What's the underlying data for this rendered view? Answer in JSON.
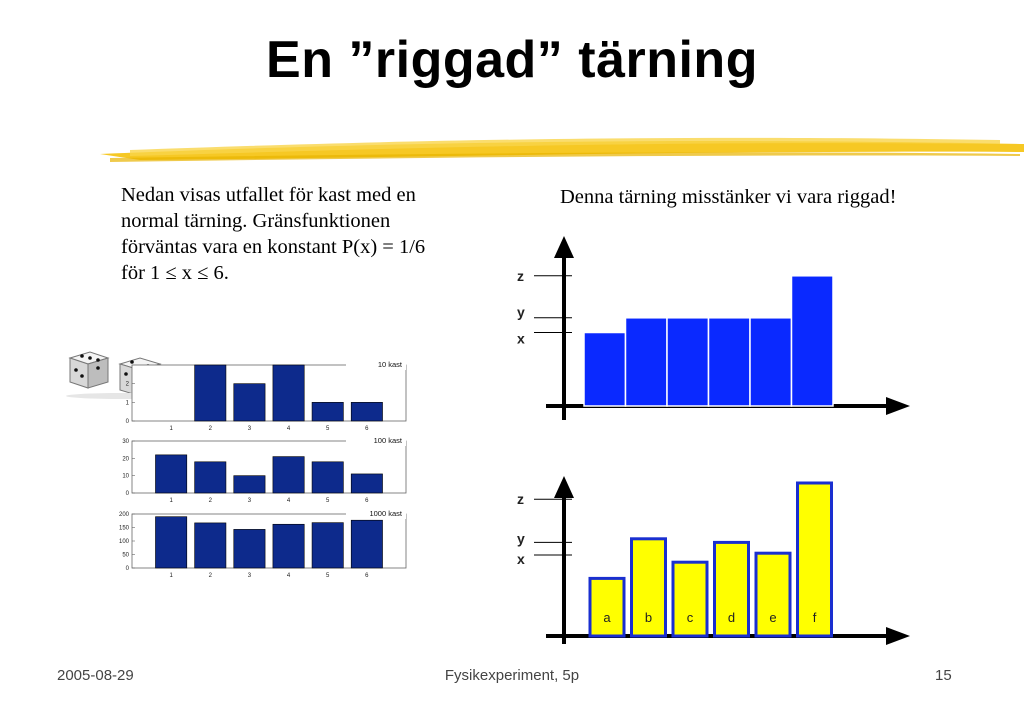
{
  "slide": {
    "title": "En ”riggad” tärning",
    "left_text": "Nedan visas utfallet för kast med en normal tärning. Gränsfunktionen förväntas vara en konstant P(x) = 1/6 för 1 ≤ x ≤ 6.",
    "right_heading": "Denna tärning misstänker vi vara riggad!",
    "footer": {
      "date": "2005-08-29",
      "course": "Fysikexperiment, 5p",
      "page": "15"
    },
    "colors": {
      "accent_yellow": "#f5c518",
      "blue_bar": "#0a29ff",
      "navy_bar": "#0d2a8c",
      "yellow_bar": "#ffff00"
    },
    "dice_icon": "dice-icon"
  },
  "chart_data": [
    {
      "type": "bar",
      "title": "10 kast",
      "categories": [
        "1",
        "2",
        "3",
        "4",
        "5",
        "6"
      ],
      "values": [
        0,
        3,
        2,
        3,
        1,
        1
      ],
      "ylim": [
        0,
        3
      ],
      "yticks": [
        0,
        1,
        2
      ]
    },
    {
      "type": "bar",
      "title": "100 kast",
      "categories": [
        "1",
        "2",
        "3",
        "4",
        "5",
        "6"
      ],
      "values": [
        22,
        18,
        10,
        21,
        18,
        11
      ],
      "ylim": [
        0,
        30
      ],
      "yticks": [
        0,
        10,
        20,
        30
      ]
    },
    {
      "type": "bar",
      "title": "1000 kast",
      "categories": [
        "1",
        "2",
        "3",
        "4",
        "5",
        "6"
      ],
      "values": [
        190,
        167,
        143,
        162,
        168,
        177
      ],
      "ylim": [
        0,
        200
      ],
      "yticks": [
        0,
        50,
        100,
        150,
        200
      ]
    },
    {
      "type": "bar",
      "categories": [
        "1",
        "2",
        "3",
        "4",
        "5",
        "6"
      ],
      "values": [
        1.75,
        2.1,
        2.1,
        2.1,
        2.1,
        3.1
      ],
      "ytick_labels": [
        "z",
        "y",
        "x"
      ],
      "ytick_values": [
        3.1,
        2.1,
        1.75
      ]
    },
    {
      "type": "bar",
      "categories": [
        "a",
        "b",
        "c",
        "d",
        "e",
        "f"
      ],
      "values": [
        1.6,
        2.7,
        2.05,
        2.6,
        2.3,
        4.25
      ],
      "ytick_labels": [
        "z",
        "y",
        "x"
      ],
      "ytick_values": [
        3.8,
        2.6,
        2.25
      ]
    }
  ]
}
